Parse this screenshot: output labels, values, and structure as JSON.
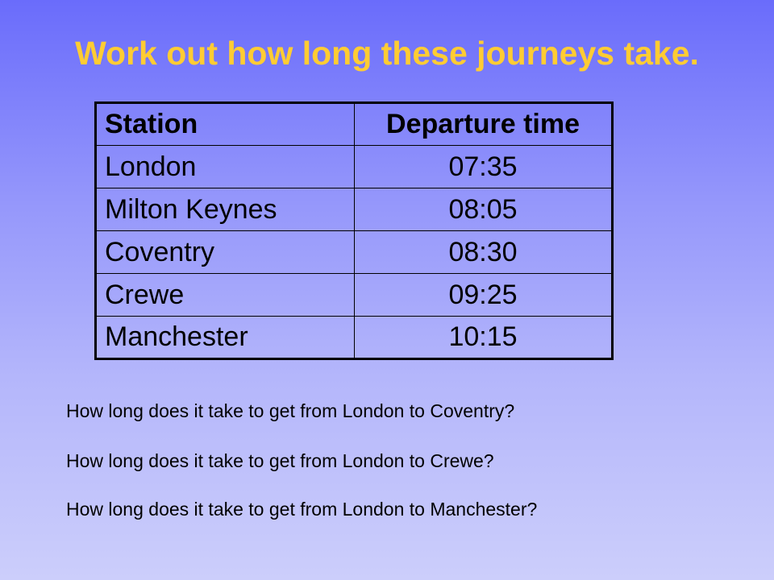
{
  "colors": {
    "title": "#ffcc33",
    "background_top": "#6a6cfb",
    "background_bottom": "#cccefb",
    "text": "#000000"
  },
  "slide": {
    "title": "Work out how long these journeys take."
  },
  "timetable": {
    "headers": {
      "station": "Station",
      "departure": "Departure time"
    },
    "rows": [
      {
        "station": "London",
        "departure": "07:35"
      },
      {
        "station": "Milton Keynes",
        "departure": "08:05"
      },
      {
        "station": "Coventry",
        "departure": "08:30"
      },
      {
        "station": "Crewe",
        "departure": "09:25"
      },
      {
        "station": "Manchester",
        "departure": "10:15"
      }
    ]
  },
  "questions": [
    "How long does it take to get from London to Coventry?",
    "How long does it take to get from London to Crewe?",
    "How long does it take to get from London to Manchester?"
  ]
}
